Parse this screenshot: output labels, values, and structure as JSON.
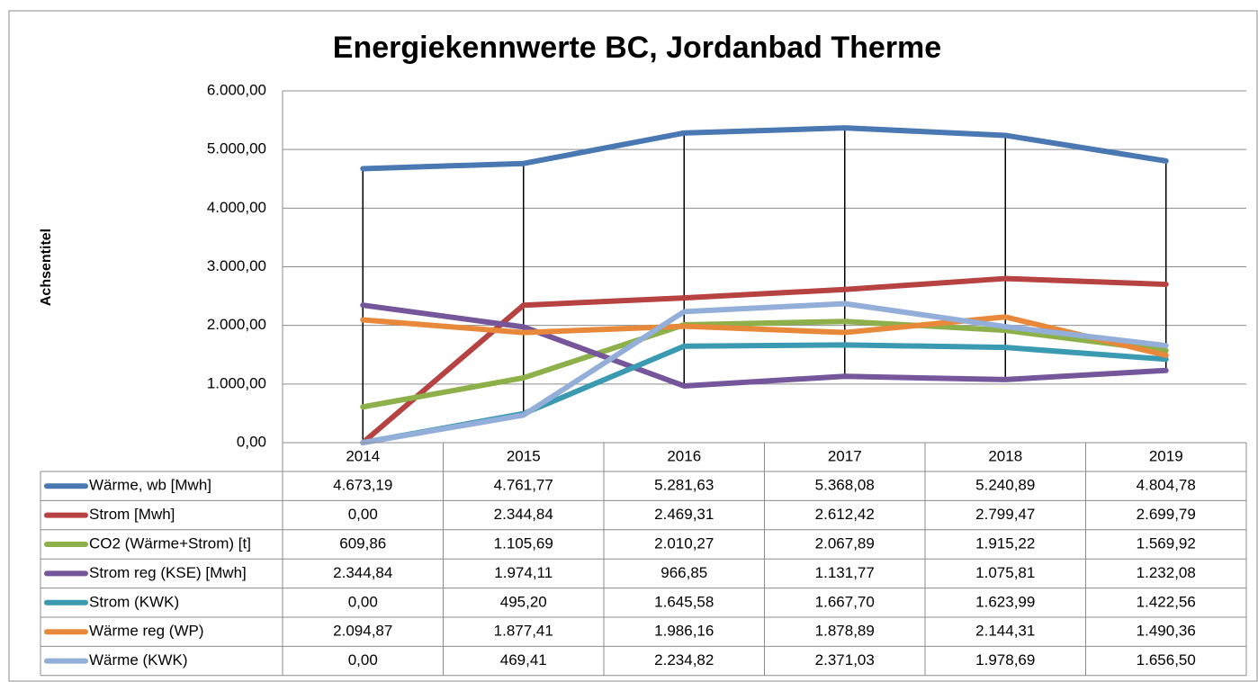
{
  "chart_data": {
    "type": "line",
    "title": "Energiekennwerte BC, Jordanbad Therme",
    "y_axis_label": "Achsentitel",
    "categories": [
      "2014",
      "2015",
      "2016",
      "2017",
      "2018",
      "2019"
    ],
    "ylim": [
      0,
      6000
    ],
    "yticks": [
      {
        "value": 0,
        "label": "0,00"
      },
      {
        "value": 1000,
        "label": "1.000,00"
      },
      {
        "value": 2000,
        "label": "2.000,00"
      },
      {
        "value": 3000,
        "label": "3.000,00"
      },
      {
        "value": 4000,
        "label": "4.000,00"
      },
      {
        "value": 5000,
        "label": "5.000,00"
      },
      {
        "value": 6000,
        "label": "6.000,00"
      }
    ],
    "grid": true,
    "high_low_lines": true,
    "series": [
      {
        "name": "Wärme, wb [Mwh]",
        "color": "#4a78b2",
        "values": [
          4673.19,
          4761.77,
          5281.63,
          5368.08,
          5240.89,
          4804.78
        ],
        "value_labels": [
          "4.673,19",
          "4.761,77",
          "5.281,63",
          "5.368,08",
          "5.240,89",
          "4.804,78"
        ]
      },
      {
        "name": "Strom [Mwh]",
        "color": "#b64242",
        "values": [
          0,
          2344.84,
          2469.31,
          2612.42,
          2799.47,
          2699.79
        ],
        "value_labels": [
          "0,00",
          "2.344,84",
          "2.469,31",
          "2.612,42",
          "2.799,47",
          "2.699,79"
        ]
      },
      {
        "name": "CO2 (Wärme+Strom)  [t]",
        "color": "#8db04a",
        "values": [
          609.86,
          1105.69,
          2010.27,
          2067.89,
          1915.22,
          1569.92
        ],
        "value_labels": [
          "609,86",
          "1.105,69",
          "2.010,27",
          "2.067,89",
          "1.915,22",
          "1.569,92"
        ]
      },
      {
        "name": "Strom reg (KSE) [Mwh]",
        "color": "#76569a",
        "values": [
          2344.84,
          1974.11,
          966.85,
          1131.77,
          1075.81,
          1232.08
        ],
        "value_labels": [
          "2.344,84",
          "1.974,11",
          "966,85",
          "1.131,77",
          "1.075,81",
          "1.232,08"
        ]
      },
      {
        "name": "Strom (KWK)",
        "color": "#3a9ab2",
        "values": [
          0,
          495.2,
          1645.58,
          1667.7,
          1623.99,
          1422.56
        ],
        "value_labels": [
          "0,00",
          "495,20",
          "1.645,58",
          "1.667,70",
          "1.623,99",
          "1.422,56"
        ]
      },
      {
        "name": "Wärme reg (WP)",
        "color": "#e8883a",
        "values": [
          2094.87,
          1877.41,
          1986.16,
          1878.89,
          2144.31,
          1490.36
        ],
        "value_labels": [
          "2.094,87",
          "1.877,41",
          "1.986,16",
          "1.878,89",
          "2.144,31",
          "1.490,36"
        ]
      },
      {
        "name": "Wärme (KWK)",
        "color": "#93aed8",
        "values": [
          0,
          469.41,
          2234.82,
          2371.03,
          1978.69,
          1656.5
        ],
        "value_labels": [
          "0,00",
          "469,41",
          "2.234,82",
          "2.371,03",
          "1.978,69",
          "1.656,50"
        ]
      }
    ]
  }
}
